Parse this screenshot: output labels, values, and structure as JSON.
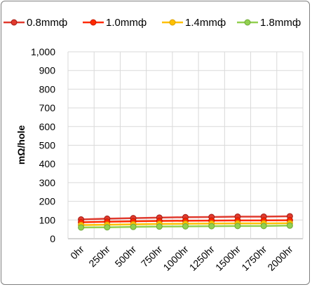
{
  "chart_data": {
    "type": "line",
    "title": "",
    "xlabel": "",
    "ylabel": "mΩ/hole",
    "categories": [
      "0hr",
      "250hr",
      "500hr",
      "750hr",
      "1000hr",
      "1250hr",
      "1500hr",
      "1750hr",
      "2000hr"
    ],
    "ylim": [
      0,
      1000
    ],
    "yticks": [
      "0",
      "100",
      "200",
      "300",
      "400",
      "500",
      "600",
      "700",
      "800",
      "900",
      "1,000"
    ],
    "grid": true,
    "legend_position": "top",
    "series": [
      {
        "name": "0.8mmф",
        "color": "#e03a2e",
        "edge": "#a11c14",
        "values": [
          103,
          107,
          110,
          113,
          115,
          116,
          118,
          118,
          120
        ]
      },
      {
        "name": "1.0mmф",
        "color": "#ff2a00",
        "edge": "#c41a00",
        "values": [
          88,
          91,
          93,
          95,
          96,
          97,
          98,
          98,
          99
        ]
      },
      {
        "name": "1.4mmф",
        "color": "#ffc000",
        "edge": "#d89f00",
        "values": [
          73,
          75,
          77,
          79,
          80,
          81,
          82,
          82,
          83
        ]
      },
      {
        "name": "1.8mmф",
        "color": "#92d050",
        "edge": "#6ea83a",
        "values": [
          60,
          61,
          63,
          65,
          66,
          67,
          68,
          68,
          70
        ]
      }
    ]
  }
}
